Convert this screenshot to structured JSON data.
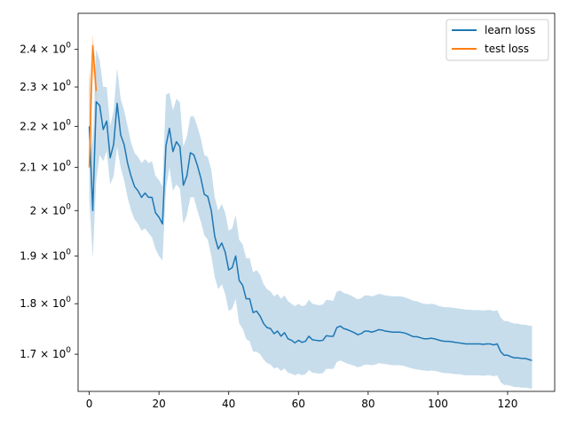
{
  "chart_data": {
    "type": "line",
    "title": "",
    "xlabel": "",
    "ylabel": "",
    "yscale": "log",
    "grid": false,
    "legend_position": "top-right",
    "xlim": [
      -3.2,
      133.5
    ],
    "ylim": [
      1.63,
      2.5
    ],
    "x_ticks": [
      {
        "value": 0,
        "label": "0"
      },
      {
        "value": 20,
        "label": "20"
      },
      {
        "value": 40,
        "label": "40"
      },
      {
        "value": 60,
        "label": "60"
      },
      {
        "value": 80,
        "label": "80"
      },
      {
        "value": 100,
        "label": "100"
      },
      {
        "value": 120,
        "label": "120"
      }
    ],
    "y_ticks": [
      {
        "value": 1.7,
        "mantissa": "1.7",
        "label": "1.7 × 10^0"
      },
      {
        "value": 1.8,
        "mantissa": "1.8",
        "label": "1.8 × 10^0"
      },
      {
        "value": 1.9,
        "mantissa": "1.9",
        "label": "1.9 × 10^0"
      },
      {
        "value": 2.0,
        "mantissa": "2",
        "label": "2 × 10^0"
      },
      {
        "value": 2.1,
        "mantissa": "2.1",
        "label": "2.1 × 10^0"
      },
      {
        "value": 2.2,
        "mantissa": "2.2",
        "label": "2.2 × 10^0"
      },
      {
        "value": 2.3,
        "mantissa": "2.3",
        "label": "2.3 × 10^0"
      },
      {
        "value": 2.4,
        "mantissa": "2.4",
        "label": "2.4 × 10^0"
      }
    ],
    "series": [
      {
        "name": "learn loss",
        "color": "#1f77b4",
        "x": [
          0,
          1,
          2,
          3,
          4,
          5,
          6,
          7,
          8,
          9,
          10,
          11,
          12,
          13,
          14,
          15,
          16,
          17,
          18,
          19,
          20,
          21,
          22,
          23,
          24,
          25,
          26,
          27,
          28,
          29,
          30,
          31,
          32,
          33,
          34,
          35,
          36,
          37,
          38,
          39,
          40,
          41,
          42,
          43,
          44,
          45,
          46,
          47,
          48,
          49,
          50,
          51,
          52,
          53,
          54,
          55,
          56,
          57,
          58,
          59,
          60,
          61,
          62,
          63,
          64,
          65,
          66,
          67,
          68,
          69,
          70,
          71,
          72,
          73,
          74,
          75,
          76,
          77,
          78,
          79,
          80,
          81,
          82,
          83,
          84,
          85,
          86,
          87,
          88,
          89,
          90,
          91,
          92,
          93,
          94,
          95,
          96,
          97,
          98,
          99,
          100,
          101,
          102,
          103,
          104,
          105,
          106,
          107,
          108,
          109,
          110,
          111,
          112,
          113,
          114,
          115,
          116,
          117,
          118,
          119,
          120,
          121,
          122,
          123,
          124,
          125,
          126,
          127
        ],
        "y": [
          2.2,
          2.0,
          2.262,
          2.252,
          2.192,
          2.213,
          2.123,
          2.156,
          2.258,
          2.179,
          2.155,
          2.11,
          2.079,
          2.055,
          2.045,
          2.03,
          2.04,
          2.03,
          2.03,
          1.995,
          1.985,
          1.97,
          2.152,
          2.195,
          2.138,
          2.162,
          2.15,
          2.058,
          2.08,
          2.135,
          2.13,
          2.105,
          2.075,
          2.037,
          2.032,
          2.0,
          1.942,
          1.915,
          1.928,
          1.908,
          1.87,
          1.875,
          1.9,
          1.848,
          1.838,
          1.81,
          1.81,
          1.782,
          1.785,
          1.775,
          1.76,
          1.752,
          1.75,
          1.74,
          1.745,
          1.735,
          1.742,
          1.73,
          1.727,
          1.722,
          1.727,
          1.723,
          1.725,
          1.735,
          1.728,
          1.727,
          1.726,
          1.727,
          1.736,
          1.735,
          1.735,
          1.752,
          1.755,
          1.75,
          1.748,
          1.745,
          1.742,
          1.738,
          1.74,
          1.745,
          1.745,
          1.743,
          1.745,
          1.748,
          1.747,
          1.745,
          1.744,
          1.743,
          1.743,
          1.743,
          1.742,
          1.74,
          1.737,
          1.734,
          1.734,
          1.732,
          1.73,
          1.73,
          1.731,
          1.73,
          1.728,
          1.726,
          1.725,
          1.725,
          1.724,
          1.723,
          1.722,
          1.721,
          1.72,
          1.72,
          1.72,
          1.72,
          1.72,
          1.719,
          1.72,
          1.72,
          1.718,
          1.72,
          1.705,
          1.698,
          1.698,
          1.695,
          1.693,
          1.693,
          1.692,
          1.692,
          1.69,
          1.688
        ],
        "lower": [
          2.03,
          1.895,
          2.07,
          2.13,
          2.115,
          2.14,
          2.06,
          2.08,
          2.15,
          2.1,
          2.07,
          2.03,
          2.0,
          1.98,
          1.97,
          1.955,
          1.96,
          1.95,
          1.94,
          1.915,
          1.9,
          1.89,
          2.05,
          2.1,
          2.045,
          2.06,
          2.05,
          1.97,
          1.99,
          2.03,
          2.03,
          2.0,
          1.975,
          1.945,
          1.935,
          1.9,
          1.855,
          1.83,
          1.84,
          1.82,
          1.785,
          1.79,
          1.81,
          1.76,
          1.75,
          1.73,
          1.725,
          1.705,
          1.705,
          1.7,
          1.69,
          1.683,
          1.68,
          1.673,
          1.675,
          1.668,
          1.673,
          1.665,
          1.663,
          1.66,
          1.663,
          1.66,
          1.662,
          1.67,
          1.665,
          1.664,
          1.663,
          1.664,
          1.672,
          1.672,
          1.672,
          1.685,
          1.688,
          1.685,
          1.682,
          1.68,
          1.678,
          1.675,
          1.677,
          1.68,
          1.68,
          1.679,
          1.68,
          1.683,
          1.682,
          1.681,
          1.68,
          1.679,
          1.679,
          1.679,
          1.678,
          1.676,
          1.674,
          1.672,
          1.671,
          1.67,
          1.669,
          1.668,
          1.669,
          1.668,
          1.667,
          1.665,
          1.664,
          1.664,
          1.663,
          1.662,
          1.662,
          1.661,
          1.66,
          1.66,
          1.66,
          1.66,
          1.66,
          1.659,
          1.66,
          1.66,
          1.658,
          1.66,
          1.647,
          1.642,
          1.642,
          1.64,
          1.638,
          1.638,
          1.637,
          1.637,
          1.636,
          1.635
        ],
        "upper": [
          2.35,
          2.15,
          2.4,
          2.37,
          2.3,
          2.3,
          2.2,
          2.24,
          2.35,
          2.27,
          2.24,
          2.2,
          2.16,
          2.135,
          2.125,
          2.11,
          2.12,
          2.11,
          2.115,
          2.08,
          2.07,
          2.055,
          2.28,
          2.285,
          2.24,
          2.27,
          2.26,
          2.15,
          2.175,
          2.225,
          2.225,
          2.2,
          2.17,
          2.13,
          2.125,
          2.095,
          2.03,
          2.0,
          2.015,
          1.995,
          1.955,
          1.96,
          1.99,
          1.935,
          1.925,
          1.895,
          1.895,
          1.865,
          1.87,
          1.86,
          1.84,
          1.83,
          1.825,
          1.815,
          1.82,
          1.81,
          1.817,
          1.805,
          1.8,
          1.795,
          1.8,
          1.795,
          1.797,
          1.808,
          1.8,
          1.798,
          1.797,
          1.798,
          1.808,
          1.807,
          1.806,
          1.825,
          1.827,
          1.822,
          1.82,
          1.817,
          1.813,
          1.809,
          1.811,
          1.817,
          1.817,
          1.815,
          1.817,
          1.82,
          1.819,
          1.817,
          1.816,
          1.815,
          1.815,
          1.815,
          1.814,
          1.812,
          1.809,
          1.806,
          1.805,
          1.802,
          1.8,
          1.799,
          1.8,
          1.799,
          1.796,
          1.794,
          1.793,
          1.793,
          1.792,
          1.791,
          1.79,
          1.789,
          1.788,
          1.788,
          1.787,
          1.787,
          1.787,
          1.786,
          1.787,
          1.787,
          1.785,
          1.787,
          1.772,
          1.765,
          1.765,
          1.762,
          1.76,
          1.76,
          1.758,
          1.758,
          1.756,
          1.755
        ]
      },
      {
        "name": "test loss",
        "color": "#ff7f0e",
        "x": [
          0,
          1,
          2
        ],
        "y": [
          2.1,
          2.41,
          2.29
        ],
        "lower": [
          2.09,
          2.35,
          2.26
        ],
        "upper": [
          2.3,
          2.44,
          2.34
        ]
      }
    ]
  }
}
